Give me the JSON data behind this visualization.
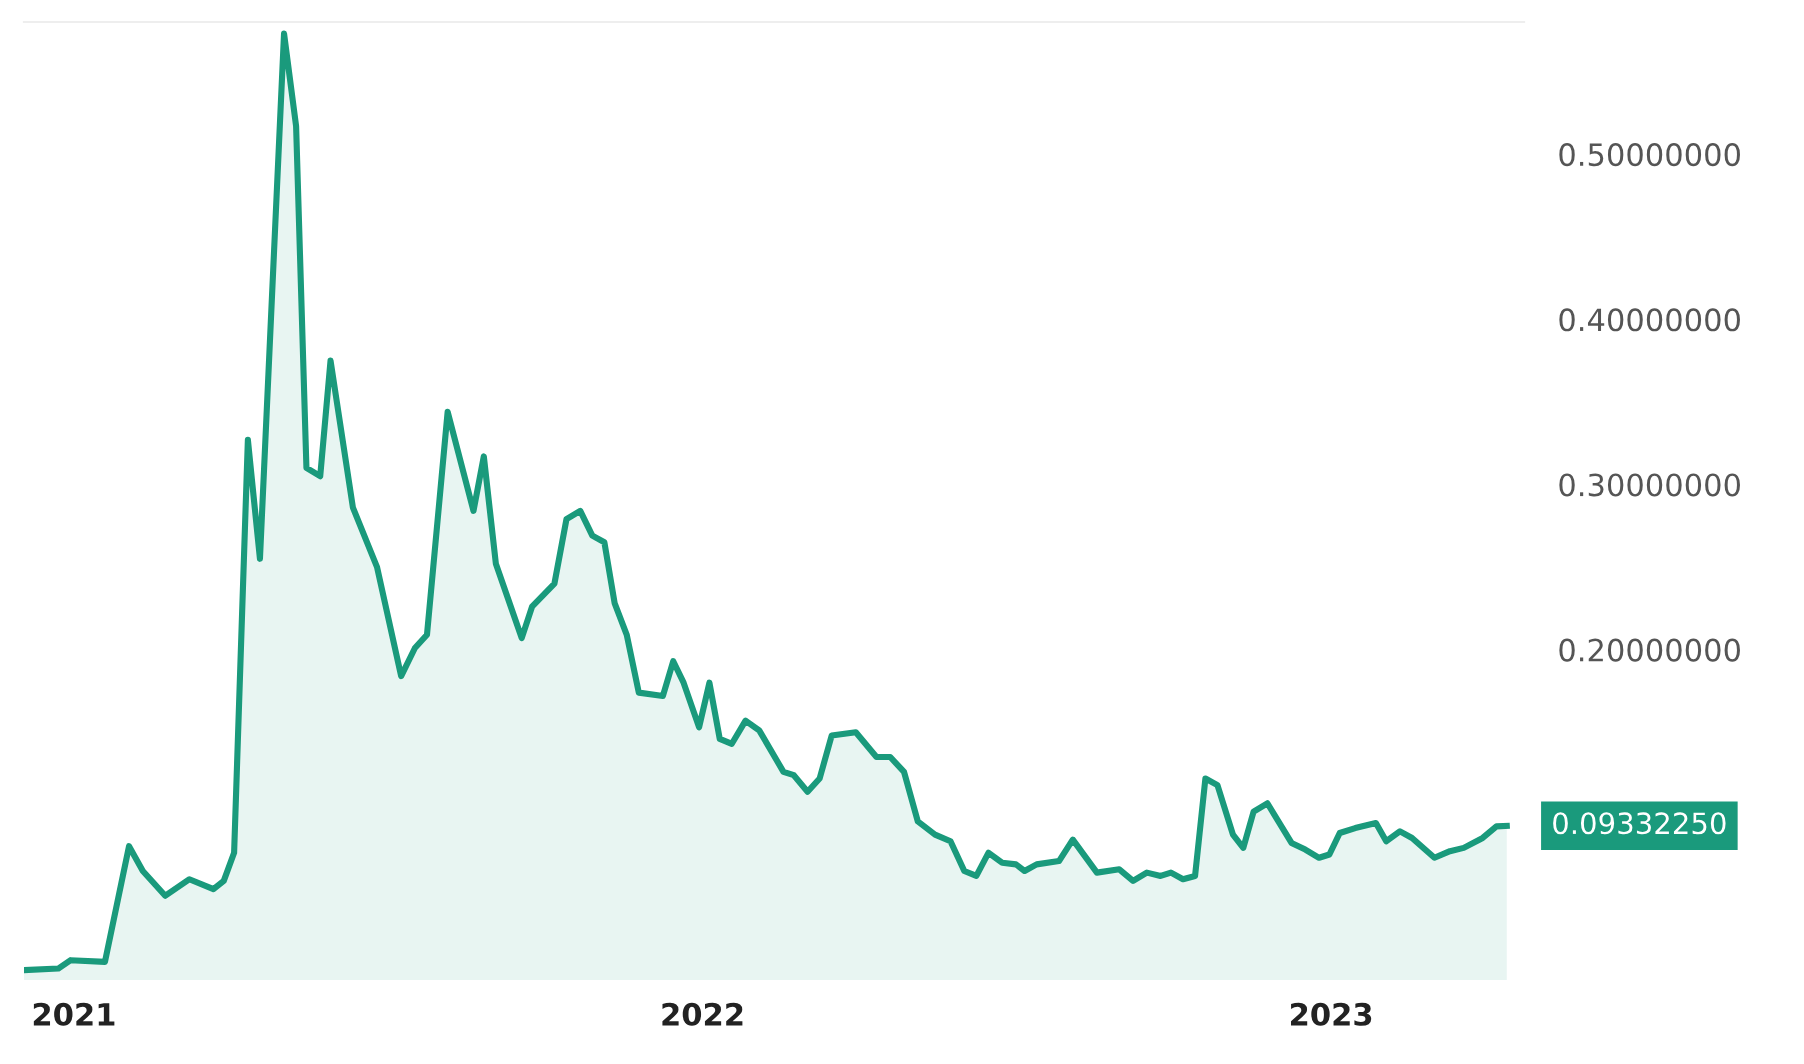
{
  "chart_data": {
    "type": "area",
    "color": "#1a9a7c",
    "x": [
      "2020-12-03",
      "2020-12-23",
      "2020-12-30",
      "2021-01-19",
      "2021-02-02",
      "2021-02-10",
      "2021-02-23",
      "2021-03-09",
      "2021-03-23",
      "2021-03-29",
      "2021-04-04",
      "2021-04-12",
      "2021-04-19",
      "2021-05-03",
      "2021-05-10",
      "2021-05-16",
      "2021-05-24",
      "2021-05-30",
      "2021-06-12",
      "2021-06-26",
      "2021-07-10",
      "2021-07-18",
      "2021-07-25",
      "2021-08-06",
      "2021-08-21",
      "2021-08-27",
      "2021-09-03",
      "2021-09-18",
      "2021-09-24",
      "2021-10-07",
      "2021-10-14",
      "2021-10-22",
      "2021-10-29",
      "2021-11-05",
      "2021-11-11",
      "2021-11-18",
      "2021-11-25",
      "2021-12-09",
      "2021-12-15",
      "2021-12-21",
      "2021-12-30",
      "2022-01-05",
      "2022-01-11",
      "2022-01-18",
      "2022-01-26",
      "2022-02-03",
      "2022-02-17",
      "2022-02-23",
      "2022-03-03",
      "2022-03-10",
      "2022-03-17",
      "2022-03-31",
      "2022-04-12",
      "2022-04-20",
      "2022-04-28",
      "2022-05-06",
      "2022-05-16",
      "2022-05-25",
      "2022-06-02",
      "2022-06-09",
      "2022-06-16",
      "2022-06-24",
      "2022-07-02",
      "2022-07-07",
      "2022-07-14",
      "2022-07-27",
      "2022-08-04",
      "2022-08-18",
      "2022-08-31",
      "2022-09-08",
      "2022-09-16",
      "2022-09-24",
      "2022-09-30",
      "2022-10-07",
      "2022-10-14",
      "2022-10-20",
      "2022-10-27",
      "2022-11-05",
      "2022-11-11",
      "2022-11-17",
      "2022-11-25",
      "2022-12-09",
      "2022-12-17",
      "2022-12-25",
      "2022-12-31",
      "2023-01-06",
      "2023-01-15",
      "2023-01-27",
      "2023-02-02",
      "2023-02-10",
      "2023-02-17",
      "2023-03-02",
      "2023-03-11",
      "2023-03-19",
      "2023-03-30",
      "2023-04-07",
      "2023-04-13"
    ],
    "values": [
      0.006,
      0.007,
      0.012,
      0.011,
      0.081,
      0.066,
      0.051,
      0.061,
      0.055,
      0.06,
      0.077,
      0.327,
      0.255,
      0.573,
      0.517,
      0.31,
      0.305,
      0.375,
      0.286,
      0.25,
      0.184,
      0.201,
      0.209,
      0.344,
      0.284,
      0.317,
      0.252,
      0.207,
      0.226,
      0.24,
      0.279,
      0.284,
      0.269,
      0.265,
      0.228,
      0.209,
      0.174,
      0.172,
      0.193,
      0.18,
      0.153,
      0.18,
      0.146,
      0.143,
      0.157,
      0.151,
      0.126,
      0.124,
      0.114,
      0.122,
      0.148,
      0.15,
      0.135,
      0.135,
      0.126,
      0.096,
      0.088,
      0.084,
      0.066,
      0.063,
      0.077,
      0.071,
      0.07,
      0.066,
      0.07,
      0.072,
      0.085,
      0.065,
      0.067,
      0.06,
      0.065,
      0.063,
      0.065,
      0.061,
      0.063,
      0.122,
      0.118,
      0.088,
      0.08,
      0.102,
      0.107,
      0.083,
      0.079,
      0.074,
      0.076,
      0.089,
      0.092,
      0.095,
      0.084,
      0.09,
      0.086,
      0.074,
      0.078,
      0.08,
      0.086,
      0.093,
      0.0933225
    ],
    "xlim": [
      "2020-12-03",
      "2023-04-23"
    ],
    "xticks": [
      {
        "value": "2021-01-01",
        "label": "2021"
      },
      {
        "value": "2022-01-01",
        "label": "2022"
      },
      {
        "value": "2023-01-01",
        "label": "2023"
      }
    ],
    "ylim": [
      0,
      0.58
    ],
    "yticks": [
      {
        "value": 0.2,
        "label": "0.20000000"
      },
      {
        "value": 0.3,
        "label": "0.30000000"
      },
      {
        "value": 0.4,
        "label": "0.40000000"
      },
      {
        "value": 0.5,
        "label": "0.50000000"
      }
    ],
    "annotations": [
      {
        "text": "0.09332250",
        "x": "2023-04-13",
        "y": 0.0933225
      }
    ]
  }
}
